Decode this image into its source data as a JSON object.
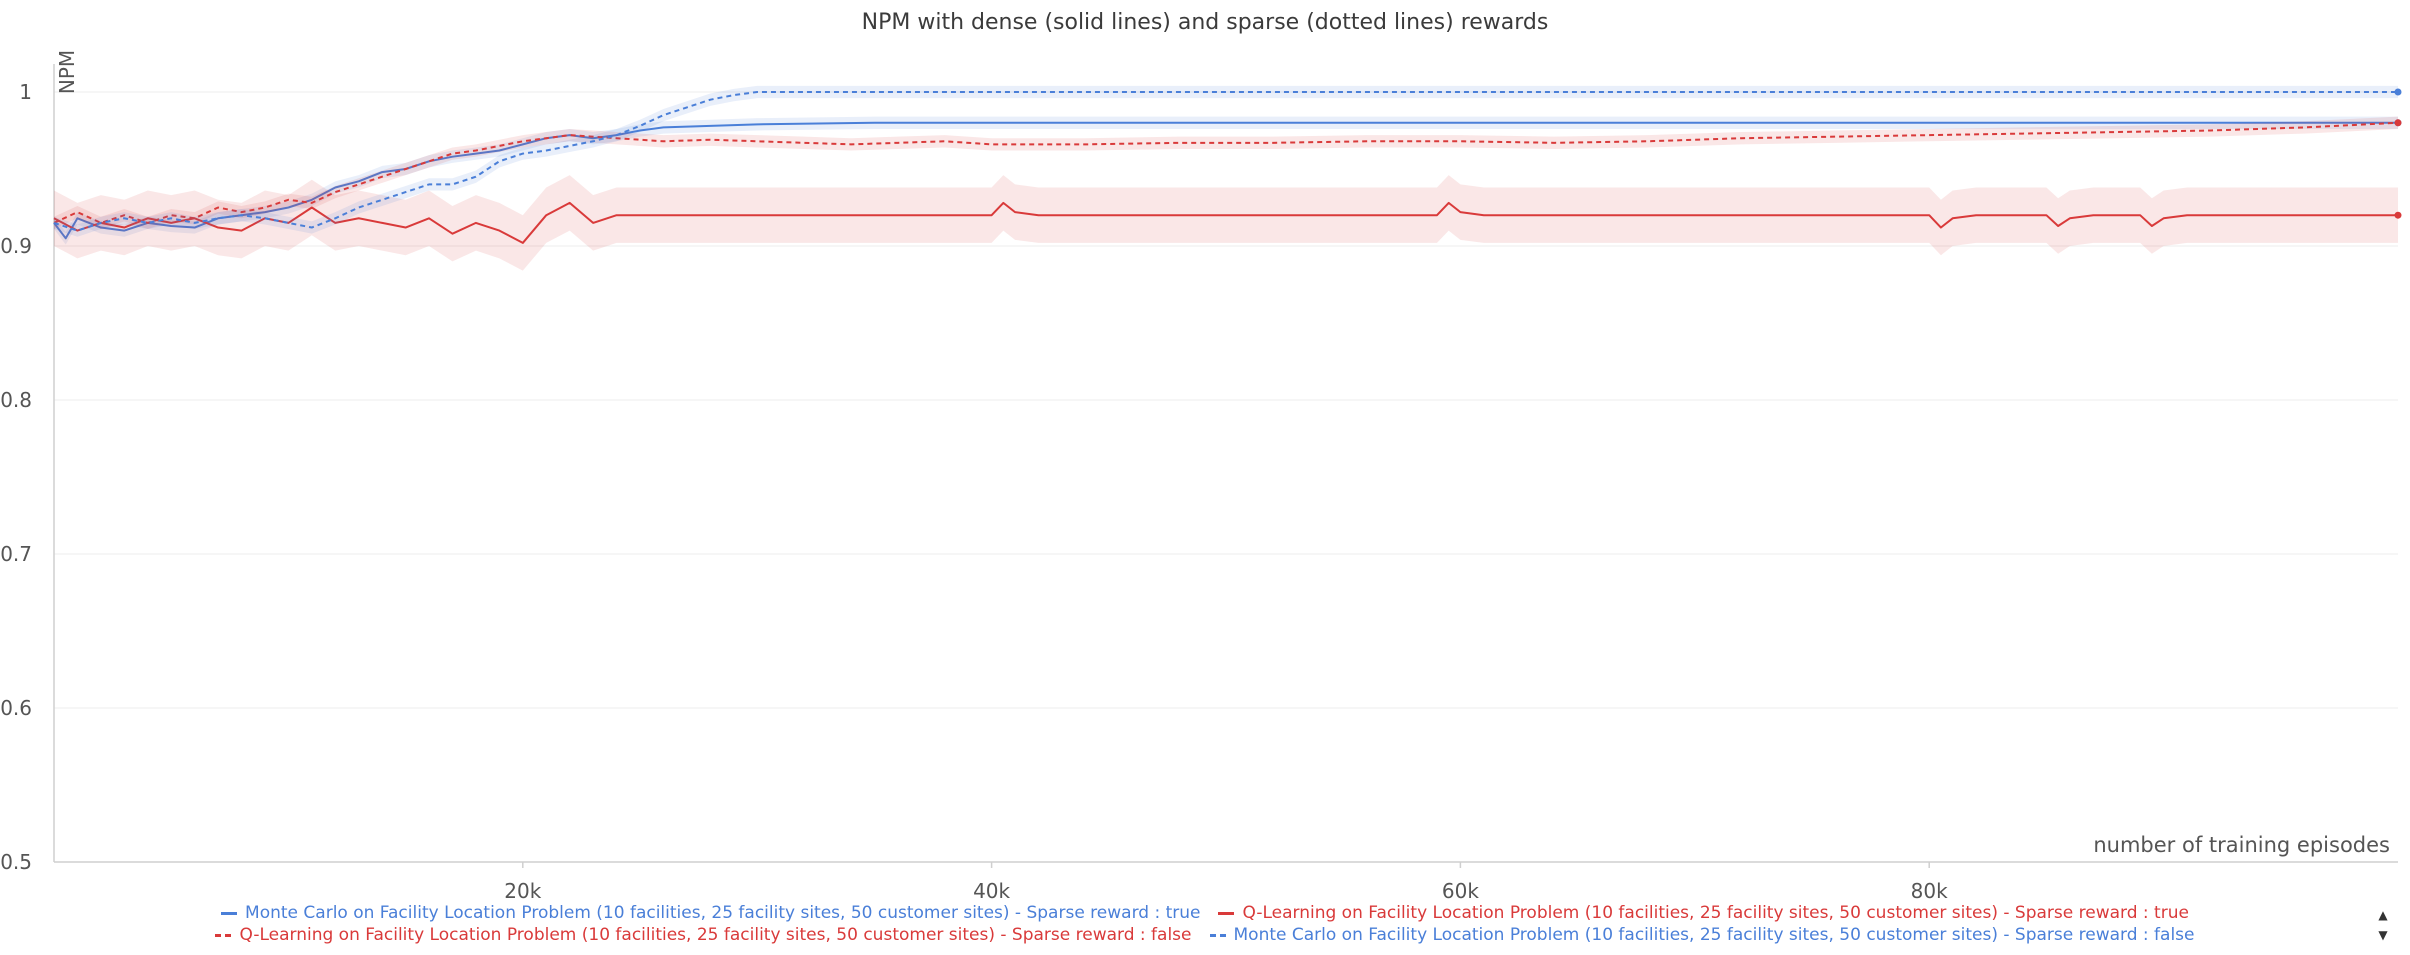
{
  "title": "NPM with dense (solid lines) and sparse (dotted lines) rewards",
  "chart_data": {
    "type": "line",
    "title": "NPM with dense (solid lines) and sparse (dotted lines) rewards",
    "xlabel": "number of training episodes",
    "ylabel": "NPM",
    "xlim": [
      0,
      100000
    ],
    "ylim": [
      0.5,
      1.0
    ],
    "x_ticks": [
      20000,
      40000,
      60000,
      80000
    ],
    "x_tick_labels": [
      "20k",
      "40k",
      "60k",
      "80k"
    ],
    "y_ticks": [
      0.5,
      0.6,
      0.7,
      0.8,
      0.9,
      1.0
    ],
    "y_tick_labels": [
      "0.5",
      "0.6",
      "0.7",
      "0.8",
      "0.9",
      "1"
    ],
    "grid": true,
    "legend_position": "bottom",
    "series": [
      {
        "name": "Monte Carlo on Facility Location Problem (10 facilities, 25 facility sites, 50 customer sites) - Sparse reward : true",
        "color": "#4a7fd8",
        "dash": "solid",
        "band": 0.004,
        "points": [
          [
            0,
            0.915
          ],
          [
            500,
            0.905
          ],
          [
            1000,
            0.918
          ],
          [
            2000,
            0.912
          ],
          [
            3000,
            0.91
          ],
          [
            4000,
            0.915
          ],
          [
            5000,
            0.913
          ],
          [
            6000,
            0.912
          ],
          [
            7000,
            0.918
          ],
          [
            8000,
            0.92
          ],
          [
            9000,
            0.922
          ],
          [
            10000,
            0.925
          ],
          [
            11000,
            0.93
          ],
          [
            12000,
            0.938
          ],
          [
            13000,
            0.942
          ],
          [
            14000,
            0.948
          ],
          [
            15000,
            0.95
          ],
          [
            16000,
            0.955
          ],
          [
            17000,
            0.958
          ],
          [
            18000,
            0.96
          ],
          [
            19000,
            0.962
          ],
          [
            20000,
            0.966
          ],
          [
            21000,
            0.97
          ],
          [
            22000,
            0.972
          ],
          [
            23000,
            0.97
          ],
          [
            24000,
            0.972
          ],
          [
            25000,
            0.975
          ],
          [
            26000,
            0.977
          ],
          [
            28000,
            0.978
          ],
          [
            30000,
            0.979
          ],
          [
            35000,
            0.98
          ],
          [
            40000,
            0.98
          ],
          [
            50000,
            0.98
          ],
          [
            60000,
            0.98
          ],
          [
            70000,
            0.98
          ],
          [
            80000,
            0.98
          ],
          [
            90000,
            0.98
          ],
          [
            100000,
            0.98
          ]
        ]
      },
      {
        "name": "Q-Learning on Facility Location Problem (10 facilities, 25 facility sites, 50 customer sites) - Sparse reward : true",
        "color": "#d93a3a",
        "dash": "solid",
        "band": 0.018,
        "points": [
          [
            0,
            0.918
          ],
          [
            1000,
            0.91
          ],
          [
            2000,
            0.915
          ],
          [
            3000,
            0.912
          ],
          [
            4000,
            0.918
          ],
          [
            5000,
            0.915
          ],
          [
            6000,
            0.918
          ],
          [
            7000,
            0.912
          ],
          [
            8000,
            0.91
          ],
          [
            9000,
            0.918
          ],
          [
            10000,
            0.915
          ],
          [
            11000,
            0.925
          ],
          [
            12000,
            0.915
          ],
          [
            13000,
            0.918
          ],
          [
            14000,
            0.915
          ],
          [
            15000,
            0.912
          ],
          [
            16000,
            0.918
          ],
          [
            17000,
            0.908
          ],
          [
            18000,
            0.915
          ],
          [
            19000,
            0.91
          ],
          [
            20000,
            0.902
          ],
          [
            21000,
            0.92
          ],
          [
            22000,
            0.928
          ],
          [
            23000,
            0.915
          ],
          [
            24000,
            0.92
          ],
          [
            30000,
            0.92
          ],
          [
            40000,
            0.92
          ],
          [
            40500,
            0.928
          ],
          [
            41000,
            0.922
          ],
          [
            42000,
            0.92
          ],
          [
            59000,
            0.92
          ],
          [
            59500,
            0.928
          ],
          [
            60000,
            0.922
          ],
          [
            61000,
            0.92
          ],
          [
            80000,
            0.92
          ],
          [
            80500,
            0.912
          ],
          [
            81000,
            0.918
          ],
          [
            82000,
            0.92
          ],
          [
            85000,
            0.92
          ],
          [
            85500,
            0.913
          ],
          [
            86000,
            0.918
          ],
          [
            87000,
            0.92
          ],
          [
            89000,
            0.92
          ],
          [
            89500,
            0.913
          ],
          [
            90000,
            0.918
          ],
          [
            91000,
            0.92
          ],
          [
            100000,
            0.92
          ]
        ]
      },
      {
        "name": "Q-Learning on Facility Location Problem (10 facilities, 25 facility sites, 50 customer sites) - Sparse reward : false",
        "color": "#d93a3a",
        "dash": "dashed",
        "band": 0.004,
        "points": [
          [
            0,
            0.915
          ],
          [
            1000,
            0.922
          ],
          [
            2000,
            0.915
          ],
          [
            3000,
            0.92
          ],
          [
            4000,
            0.915
          ],
          [
            5000,
            0.92
          ],
          [
            6000,
            0.918
          ],
          [
            7000,
            0.925
          ],
          [
            8000,
            0.922
          ],
          [
            9000,
            0.925
          ],
          [
            10000,
            0.93
          ],
          [
            11000,
            0.928
          ],
          [
            12000,
            0.935
          ],
          [
            13000,
            0.94
          ],
          [
            14000,
            0.945
          ],
          [
            15000,
            0.95
          ],
          [
            16000,
            0.955
          ],
          [
            17000,
            0.96
          ],
          [
            18000,
            0.962
          ],
          [
            19000,
            0.965
          ],
          [
            20000,
            0.968
          ],
          [
            21000,
            0.97
          ],
          [
            22000,
            0.972
          ],
          [
            24000,
            0.97
          ],
          [
            26000,
            0.968
          ],
          [
            28000,
            0.969
          ],
          [
            30000,
            0.968
          ],
          [
            32000,
            0.967
          ],
          [
            34000,
            0.966
          ],
          [
            36000,
            0.967
          ],
          [
            38000,
            0.968
          ],
          [
            40000,
            0.966
          ],
          [
            44000,
            0.966
          ],
          [
            48000,
            0.967
          ],
          [
            52000,
            0.967
          ],
          [
            56000,
            0.968
          ],
          [
            60000,
            0.968
          ],
          [
            64000,
            0.967
          ],
          [
            68000,
            0.968
          ],
          [
            72000,
            0.97
          ],
          [
            76000,
            0.971
          ],
          [
            80000,
            0.972
          ],
          [
            84000,
            0.973
          ],
          [
            88000,
            0.974
          ],
          [
            92000,
            0.975
          ],
          [
            96000,
            0.977
          ],
          [
            100000,
            0.98
          ]
        ]
      },
      {
        "name": "Monte Carlo on Facility Location Problem (10 facilities, 25 facility sites, 50 customer sites) - Sparse reward : false",
        "color": "#4a7fd8",
        "dash": "dashed",
        "band": 0.004,
        "points": [
          [
            0,
            0.915
          ],
          [
            1000,
            0.91
          ],
          [
            2000,
            0.915
          ],
          [
            3000,
            0.918
          ],
          [
            4000,
            0.915
          ],
          [
            5000,
            0.918
          ],
          [
            6000,
            0.915
          ],
          [
            7000,
            0.918
          ],
          [
            8000,
            0.92
          ],
          [
            9000,
            0.918
          ],
          [
            10000,
            0.915
          ],
          [
            11000,
            0.912
          ],
          [
            12000,
            0.918
          ],
          [
            13000,
            0.925
          ],
          [
            14000,
            0.93
          ],
          [
            15000,
            0.935
          ],
          [
            16000,
            0.94
          ],
          [
            17000,
            0.94
          ],
          [
            18000,
            0.945
          ],
          [
            19000,
            0.955
          ],
          [
            20000,
            0.96
          ],
          [
            21000,
            0.962
          ],
          [
            22000,
            0.965
          ],
          [
            23000,
            0.968
          ],
          [
            24000,
            0.972
          ],
          [
            25000,
            0.978
          ],
          [
            26000,
            0.985
          ],
          [
            27000,
            0.99
          ],
          [
            28000,
            0.995
          ],
          [
            29000,
            0.998
          ],
          [
            30000,
            1.0
          ],
          [
            35000,
            1.0
          ],
          [
            40000,
            1.0
          ],
          [
            50000,
            1.0
          ],
          [
            60000,
            1.0
          ],
          [
            70000,
            1.0
          ],
          [
            80000,
            1.0
          ],
          [
            90000,
            1.0
          ],
          [
            100000,
            1.0
          ]
        ]
      }
    ]
  },
  "legend": {
    "rows": [
      [
        {
          "label": "Monte Carlo on Facility Location Problem (10 facilities, 25 facility sites, 50 customer sites) - Sparse reward : true",
          "color": "#4a7fd8",
          "dash": "solid"
        },
        {
          "label": "Q-Learning on Facility Location Problem (10 facilities, 25 facility sites, 50 customer sites) - Sparse reward : true",
          "color": "#d93a3a",
          "dash": "solid"
        }
      ],
      [
        {
          "label": "Q-Learning on Facility Location Problem (10 facilities, 25 facility sites, 50 customer sites) - Sparse reward : false",
          "color": "#d93a3a",
          "dash": "dashed"
        },
        {
          "label": "Monte Carlo on Facility Location Problem (10 facilities, 25 facility sites, 50 customer sites) - Sparse reward : false",
          "color": "#4a7fd8",
          "dash": "dashed"
        }
      ]
    ]
  },
  "scroll_icons": {
    "up": "▲",
    "down": "▼"
  }
}
